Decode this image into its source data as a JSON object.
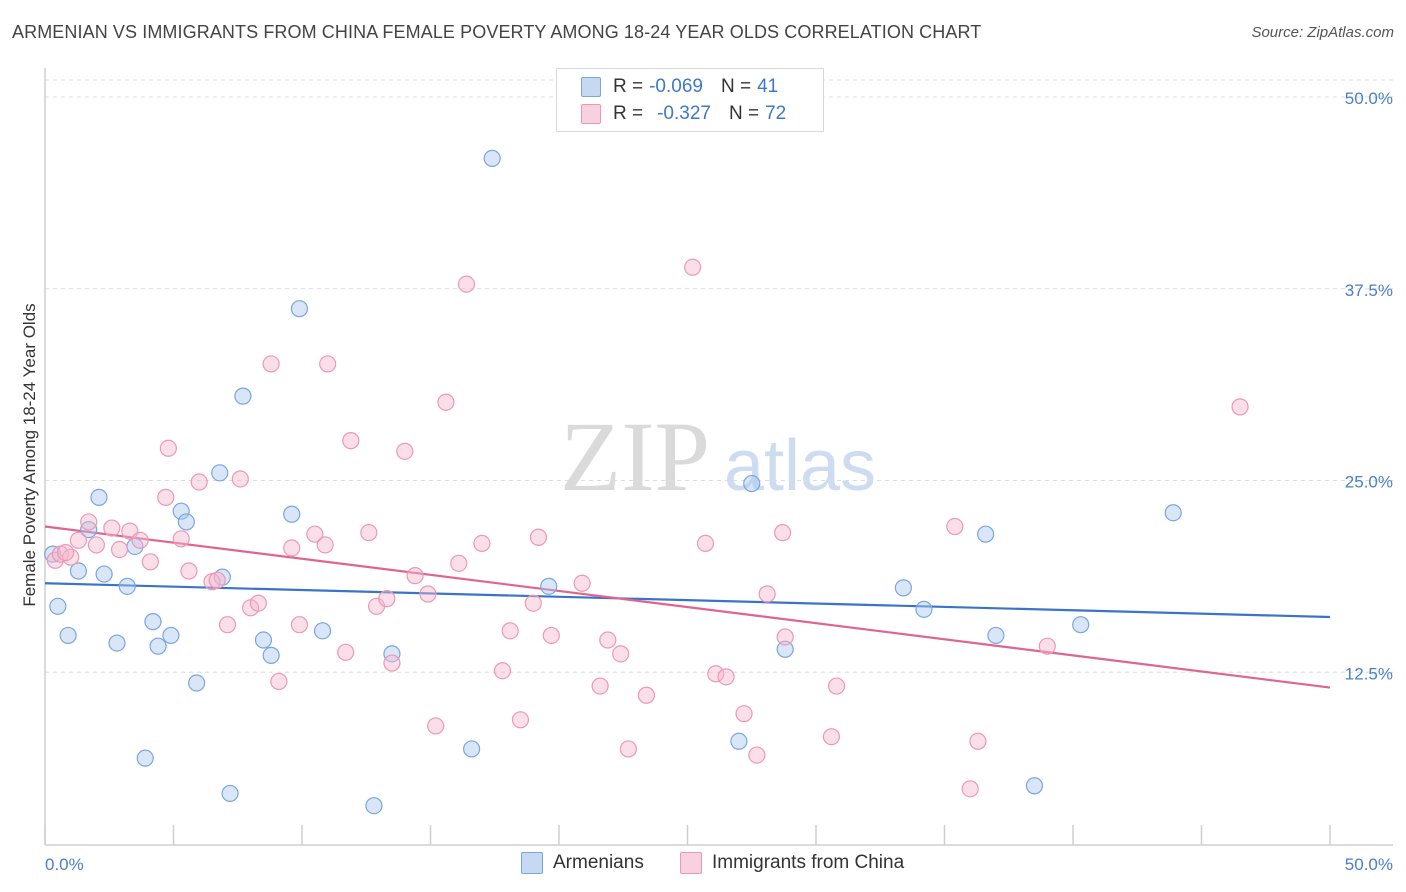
{
  "title": "ARMENIAN VS IMMIGRANTS FROM CHINA FEMALE POVERTY AMONG 18-24 YEAR OLDS CORRELATION CHART",
  "source": "Source: ZipAtlas.com",
  "watermark": {
    "zip": "ZIP",
    "atlas": "atlas"
  },
  "legend": {
    "armenians": {
      "r_label": "R =",
      "r_value": "-0.069",
      "n_label": "N =",
      "n_value": "41"
    },
    "china": {
      "r_label": "R =",
      "r_value": "-0.327",
      "n_label": "N =",
      "n_value": "72"
    }
  },
  "bottom_legend": {
    "armenians": "Armenians",
    "china": "Immigrants from China"
  },
  "colors": {
    "blue_fill": "#a9c8ef",
    "blue_stroke": "#7aa6dd",
    "blue_line": "#3a74c8",
    "pink_fill": "#f6b9cd",
    "pink_stroke": "#ec98b5",
    "pink_line": "#e0648f",
    "grid": "#dcdcdc",
    "tick_text": "#4a7fc9"
  },
  "chart_data": {
    "type": "scatter",
    "title": "ARMENIAN VS IMMIGRANTS FROM CHINA FEMALE POVERTY AMONG 18-24 YEAR OLDS CORRELATION CHART",
    "xlabel": "",
    "ylabel": "Female Poverty Among 18-24 Year Olds",
    "xlim": [
      0,
      50
    ],
    "ylim": [
      0,
      50
    ],
    "x_tick_labels": [
      "0.0%",
      "50.0%"
    ],
    "y_ticks": [
      12.5,
      25.0,
      37.5,
      50.0
    ],
    "y_tick_labels": [
      "12.5%",
      "25.0%",
      "37.5%",
      "50.0%"
    ],
    "grid": true,
    "series": [
      {
        "name": "Armenians",
        "trend": {
          "x": [
            0,
            50
          ],
          "y": [
            18.3,
            16.1
          ]
        },
        "points": [
          [
            0.3,
            20.2
          ],
          [
            0.5,
            16.8
          ],
          [
            0.9,
            14.9
          ],
          [
            1.3,
            19.1
          ],
          [
            1.7,
            21.8
          ],
          [
            2.1,
            23.9
          ],
          [
            2.3,
            18.9
          ],
          [
            2.8,
            14.4
          ],
          [
            3.2,
            18.1
          ],
          [
            3.5,
            20.7
          ],
          [
            3.9,
            6.9
          ],
          [
            4.2,
            15.8
          ],
          [
            4.4,
            14.2
          ],
          [
            4.9,
            14.9
          ],
          [
            5.3,
            23.0
          ],
          [
            5.5,
            22.3
          ],
          [
            5.9,
            11.8
          ],
          [
            6.8,
            25.5
          ],
          [
            6.9,
            18.7
          ],
          [
            7.2,
            4.6
          ],
          [
            7.7,
            30.5
          ],
          [
            8.5,
            14.6
          ],
          [
            8.8,
            13.6
          ],
          [
            9.6,
            22.8
          ],
          [
            9.9,
            36.2
          ],
          [
            10.8,
            15.2
          ],
          [
            12.8,
            3.8
          ],
          [
            13.5,
            13.7
          ],
          [
            16.6,
            7.5
          ],
          [
            17.4,
            46.0
          ],
          [
            19.6,
            18.1
          ],
          [
            27.0,
            8.0
          ],
          [
            27.5,
            24.8
          ],
          [
            28.8,
            14.0
          ],
          [
            33.4,
            18.0
          ],
          [
            34.2,
            16.6
          ],
          [
            36.6,
            21.5
          ],
          [
            37.0,
            14.9
          ],
          [
            38.5,
            5.1
          ],
          [
            40.3,
            15.6
          ],
          [
            43.9,
            22.9
          ]
        ]
      },
      {
        "name": "Immigrants from China",
        "trend": {
          "x": [
            0,
            50
          ],
          "y": [
            22.0,
            11.5
          ]
        },
        "points": [
          [
            0.4,
            19.8
          ],
          [
            0.6,
            20.2
          ],
          [
            1.0,
            20.0
          ],
          [
            1.3,
            21.1
          ],
          [
            1.7,
            22.3
          ],
          [
            2.0,
            20.8
          ],
          [
            2.6,
            21.9
          ],
          [
            2.9,
            20.5
          ],
          [
            3.3,
            21.7
          ],
          [
            3.7,
            21.1
          ],
          [
            4.1,
            19.7
          ],
          [
            4.7,
            23.9
          ],
          [
            4.8,
            27.1
          ],
          [
            5.3,
            21.2
          ],
          [
            5.6,
            19.1
          ],
          [
            6.0,
            24.9
          ],
          [
            6.5,
            18.4
          ],
          [
            6.7,
            18.5
          ],
          [
            7.1,
            15.6
          ],
          [
            7.6,
            25.1
          ],
          [
            8.0,
            16.7
          ],
          [
            8.3,
            17.0
          ],
          [
            8.8,
            32.6
          ],
          [
            9.1,
            11.9
          ],
          [
            9.6,
            20.6
          ],
          [
            9.9,
            15.6
          ],
          [
            10.5,
            21.5
          ],
          [
            10.9,
            20.8
          ],
          [
            11.0,
            32.6
          ],
          [
            11.7,
            13.8
          ],
          [
            11.9,
            27.6
          ],
          [
            12.6,
            21.6
          ],
          [
            12.9,
            16.8
          ],
          [
            13.3,
            17.3
          ],
          [
            13.5,
            13.1
          ],
          [
            14.0,
            26.9
          ],
          [
            14.4,
            18.8
          ],
          [
            14.9,
            17.6
          ],
          [
            15.2,
            9.0
          ],
          [
            15.6,
            30.1
          ],
          [
            16.1,
            19.6
          ],
          [
            16.4,
            37.8
          ],
          [
            17.0,
            20.9
          ],
          [
            17.8,
            12.6
          ],
          [
            18.1,
            15.2
          ],
          [
            18.5,
            9.4
          ],
          [
            19.0,
            17.0
          ],
          [
            19.2,
            21.3
          ],
          [
            19.7,
            14.9
          ],
          [
            20.9,
            18.3
          ],
          [
            21.6,
            11.6
          ],
          [
            21.9,
            14.6
          ],
          [
            22.4,
            13.7
          ],
          [
            22.7,
            7.5
          ],
          [
            23.4,
            11.0
          ],
          [
            25.2,
            38.9
          ],
          [
            25.7,
            20.9
          ],
          [
            26.1,
            12.4
          ],
          [
            26.5,
            12.2
          ],
          [
            27.2,
            9.8
          ],
          [
            27.7,
            7.1
          ],
          [
            28.1,
            17.6
          ],
          [
            28.7,
            21.6
          ],
          [
            28.8,
            14.8
          ],
          [
            30.6,
            8.3
          ],
          [
            30.8,
            11.6
          ],
          [
            35.4,
            22.0
          ],
          [
            36.0,
            4.9
          ],
          [
            36.3,
            8.0
          ],
          [
            39.0,
            14.2
          ],
          [
            46.5,
            29.8
          ],
          [
            0.8,
            20.3
          ]
        ]
      }
    ]
  }
}
